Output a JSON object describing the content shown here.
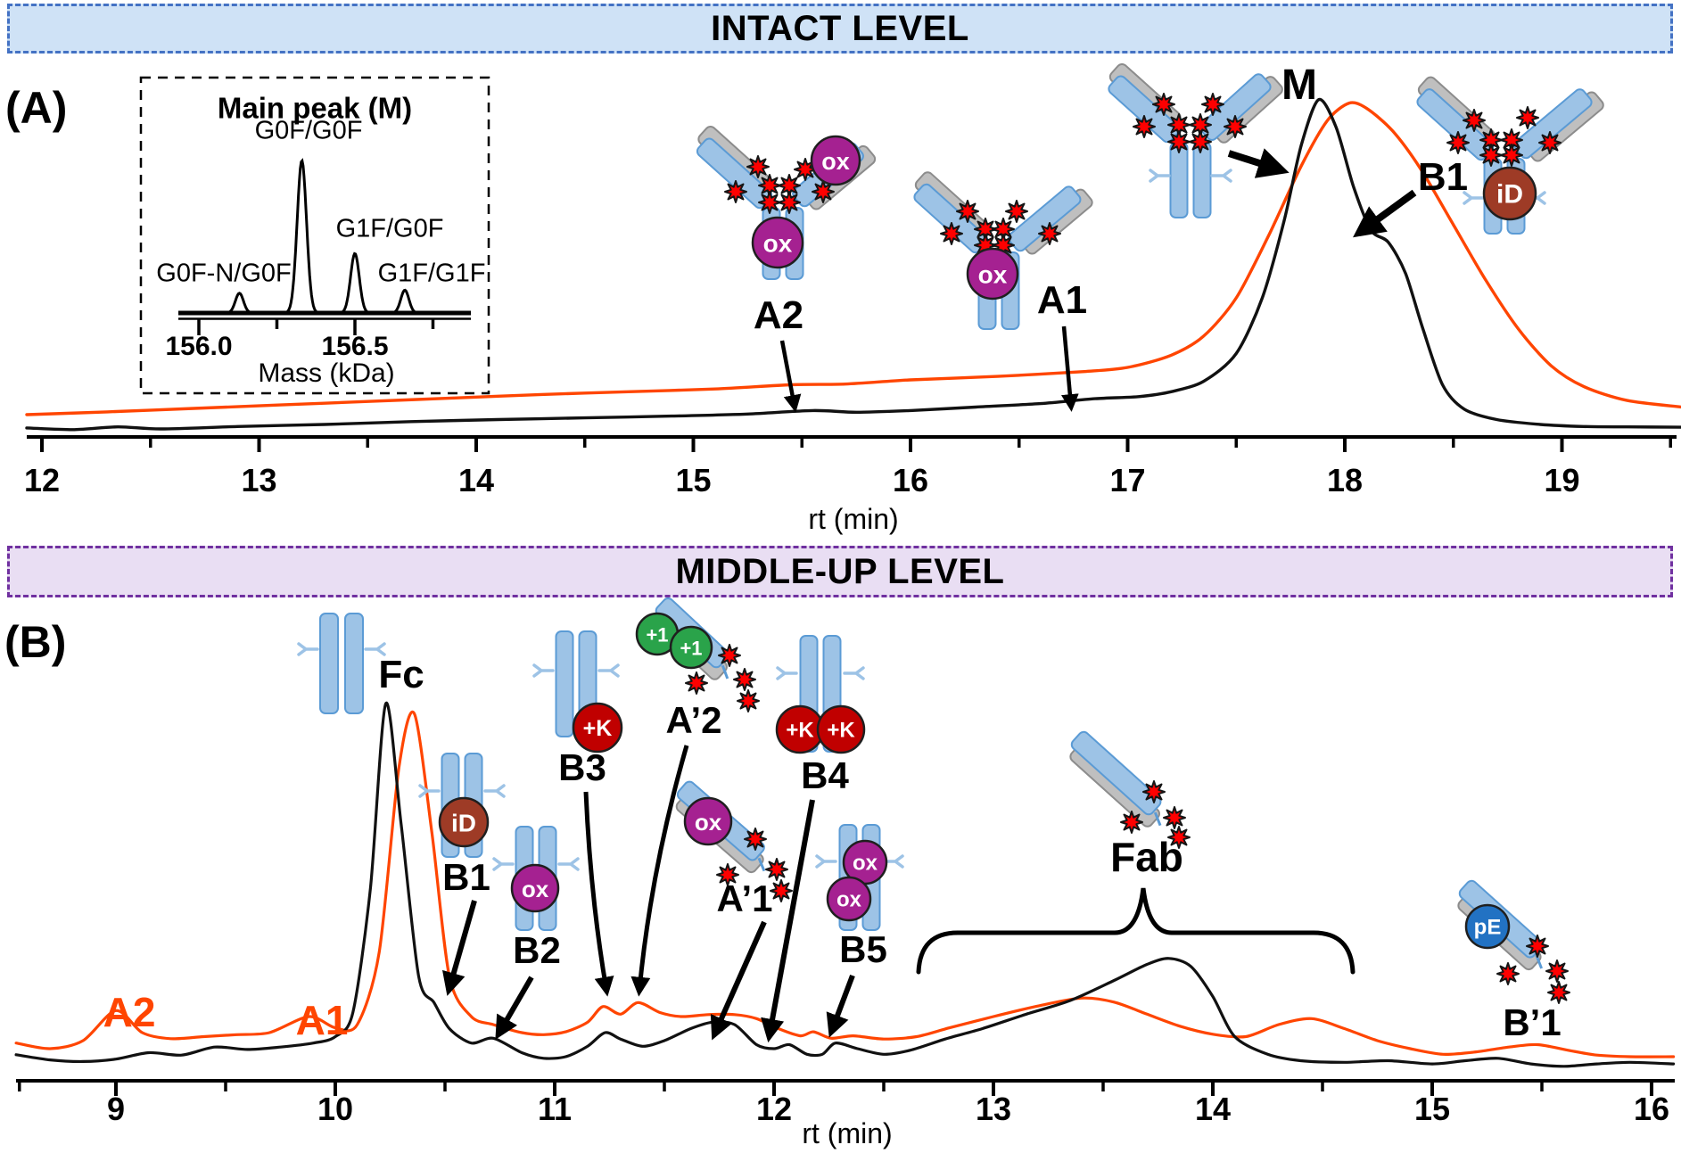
{
  "banners": {
    "intact": "INTACT LEVEL",
    "middle_up": "MIDDLE-UP LEVEL"
  },
  "panelA": {
    "label": "(A)",
    "xlabel": "rt (min)",
    "xticks": [
      "12",
      "13",
      "14",
      "15",
      "16",
      "17",
      "18",
      "19"
    ],
    "peak_labels": {
      "M": "M",
      "B1": "B1",
      "A1": "A1",
      "A2": "A2"
    },
    "inset": {
      "title": "Main peak (M)",
      "xlabel": "Mass (kDa)",
      "tick_labels": [
        "156.0",
        "156.5"
      ],
      "peak_labels": [
        "G0F-N/G0F",
        "G0F/G0F",
        "G1F/G0F",
        "G1F/G1F"
      ]
    }
  },
  "panelB": {
    "label": "(B)",
    "xlabel": "rt (min)",
    "xticks": [
      "9",
      "10",
      "11",
      "12",
      "13",
      "14",
      "15",
      "16"
    ],
    "peak_labels": {
      "A2": "A2",
      "A1": "A1",
      "Fc": "Fc",
      "B1": "B1",
      "B2": "B2",
      "B3": "B3",
      "Ap2": "A’2",
      "Ap1": "A’1",
      "B4": "B4",
      "B5": "B5",
      "Fab": "Fab",
      "Bp1": "B’1"
    }
  },
  "glyphs": {
    "ox": "ox",
    "id": "iD",
    "plusK": "+K",
    "plus1": "+1",
    "pE": "pE"
  },
  "colors": {
    "orange_trace": "#ff4500",
    "black_trace": "#111111",
    "banner_intact_bg": "#cfe2f6",
    "banner_intact_border": "#4472c4",
    "banner_middleup_bg": "#e9def3",
    "banner_middleup_border": "#7030a0",
    "ox_badge": "#a52191",
    "id_badge": "#9e3b26",
    "plusK_badge": "#c00000",
    "plus1_badge": "#2aa34a",
    "pE_badge": "#2272c3",
    "star": "#ff0000",
    "hc_blue": "#9dc3e6",
    "hc_blue_stroke": "#5b9bd5",
    "lc_gray": "#bfbfbf",
    "lc_gray_stroke": "#8c8c8c"
  },
  "chart_data": [
    {
      "id": "panelA",
      "type": "line",
      "title": "Intact level chromatogram",
      "xlabel": "rt (min)",
      "xlim": [
        11.93,
        19.55
      ],
      "x_ticks": [
        12,
        13,
        14,
        15,
        16,
        17,
        18,
        19
      ],
      "grid": false,
      "legend": "none",
      "series": [
        {
          "name": "trace-orange",
          "points": [
            [
              11.93,
              6.4
            ],
            [
              12.3,
              7.2
            ],
            [
              12.7,
              8.2
            ],
            [
              13.1,
              9.2
            ],
            [
              13.5,
              10.2
            ],
            [
              13.9,
              11.2
            ],
            [
              14.3,
              12.2
            ],
            [
              14.7,
              13
            ],
            [
              15.1,
              13.8
            ],
            [
              15.45,
              15
            ],
            [
              15.7,
              15.2
            ],
            [
              16.0,
              16.4
            ],
            [
              16.4,
              17.4
            ],
            [
              16.8,
              18.8
            ],
            [
              17.0,
              20
            ],
            [
              17.2,
              23.5
            ],
            [
              17.35,
              29
            ],
            [
              17.5,
              40
            ],
            [
              17.65,
              58
            ],
            [
              17.8,
              78
            ],
            [
              17.92,
              91
            ],
            [
              18.02,
              96
            ],
            [
              18.1,
              94.5
            ],
            [
              18.22,
              88
            ],
            [
              18.35,
              77
            ],
            [
              18.5,
              61
            ],
            [
              18.65,
              45
            ],
            [
              18.8,
              31
            ],
            [
              18.95,
              20.5
            ],
            [
              19.1,
              14.5
            ],
            [
              19.3,
              10.5
            ],
            [
              19.55,
              8.6
            ]
          ]
        },
        {
          "name": "trace-black",
          "points": [
            [
              11.93,
              2.6
            ],
            [
              12.15,
              2.1
            ],
            [
              12.35,
              2.9
            ],
            [
              12.55,
              2.3
            ],
            [
              12.9,
              3
            ],
            [
              13.3,
              3.6
            ],
            [
              13.7,
              4.4
            ],
            [
              14.1,
              5
            ],
            [
              14.5,
              5.5
            ],
            [
              14.9,
              6
            ],
            [
              15.25,
              6.6
            ],
            [
              15.55,
              7.6
            ],
            [
              15.75,
              7.1
            ],
            [
              16.0,
              7.6
            ],
            [
              16.3,
              8.6
            ],
            [
              16.6,
              9.6
            ],
            [
              16.85,
              11
            ],
            [
              17.05,
              11.6
            ],
            [
              17.2,
              13
            ],
            [
              17.35,
              16
            ],
            [
              17.5,
              24
            ],
            [
              17.62,
              40
            ],
            [
              17.72,
              62
            ],
            [
              17.8,
              84
            ],
            [
              17.88,
              97
            ],
            [
              17.96,
              89
            ],
            [
              18.04,
              72
            ],
            [
              18.12,
              59.5
            ],
            [
              18.2,
              56
            ],
            [
              18.28,
              47
            ],
            [
              18.36,
              31
            ],
            [
              18.45,
              15
            ],
            [
              18.55,
              8
            ],
            [
              18.7,
              5
            ],
            [
              18.9,
              3.6
            ],
            [
              19.1,
              3
            ],
            [
              19.3,
              2.9
            ],
            [
              19.55,
              2.8
            ]
          ]
        }
      ],
      "annotations": [
        {
          "label": "A2",
          "rt": 15.55
        },
        {
          "label": "A1",
          "rt": 16.85
        },
        {
          "label": "M",
          "rt": 17.9
        },
        {
          "label": "B1",
          "rt": 18.2
        }
      ]
    },
    {
      "id": "insetA",
      "type": "line",
      "title": "Main peak (M)",
      "xlabel": "Mass (kDa)",
      "xlim": [
        155.93,
        156.84
      ],
      "x_ticks": [
        156.0,
        156.5
      ],
      "peaks": [
        {
          "label": "G0F-N/G0F",
          "mass": 156.13,
          "rel_intensity": 13,
          "sigma": 0.013
        },
        {
          "label": "G0F/G0F",
          "mass": 156.33,
          "rel_intensity": 100,
          "sigma": 0.015
        },
        {
          "label": "G1F/G0F",
          "mass": 156.5,
          "rel_intensity": 39,
          "sigma": 0.014
        },
        {
          "label": "G1F/G1F",
          "mass": 156.66,
          "rel_intensity": 15,
          "sigma": 0.013
        }
      ]
    },
    {
      "id": "panelB",
      "type": "line",
      "title": "Middle-up level chromatogram",
      "xlabel": "rt (min)",
      "xlim": [
        8.545,
        16.1
      ],
      "x_ticks": [
        9,
        10,
        11,
        12,
        13,
        14,
        15,
        16
      ],
      "grid": false,
      "legend": "none",
      "series": [
        {
          "name": "trace-orange",
          "points": [
            [
              8.545,
              9.4
            ],
            [
              8.7,
              8
            ],
            [
              8.85,
              10
            ],
            [
              9.0,
              17.5
            ],
            [
              9.12,
              12
            ],
            [
              9.25,
              10.5
            ],
            [
              9.4,
              11
            ],
            [
              9.55,
              11.5
            ],
            [
              9.7,
              12
            ],
            [
              9.88,
              16
            ],
            [
              10.0,
              13.2
            ],
            [
              10.1,
              14
            ],
            [
              10.2,
              32
            ],
            [
              10.29,
              78
            ],
            [
              10.36,
              91.5
            ],
            [
              10.44,
              62
            ],
            [
              10.52,
              26
            ],
            [
              10.62,
              16
            ],
            [
              10.72,
              14
            ],
            [
              10.85,
              12
            ],
            [
              10.95,
              11.5
            ],
            [
              11.05,
              12.2
            ],
            [
              11.15,
              14.6
            ],
            [
              11.22,
              18.5
            ],
            [
              11.3,
              16.6
            ],
            [
              11.38,
              19.5
            ],
            [
              11.48,
              17
            ],
            [
              11.58,
              16
            ],
            [
              11.7,
              16.5
            ],
            [
              11.82,
              16.5
            ],
            [
              11.92,
              15.5
            ],
            [
              12.02,
              13
            ],
            [
              12.12,
              11.2
            ],
            [
              12.18,
              12.2
            ],
            [
              12.26,
              10.6
            ],
            [
              12.36,
              11.2
            ],
            [
              12.5,
              10.4
            ],
            [
              12.65,
              11
            ],
            [
              12.8,
              13.2
            ],
            [
              13.0,
              16
            ],
            [
              13.2,
              18.6
            ],
            [
              13.4,
              20.6
            ],
            [
              13.55,
              19.6
            ],
            [
              13.7,
              16.6
            ],
            [
              13.85,
              13.6
            ],
            [
              14.0,
              11.6
            ],
            [
              14.15,
              11
            ],
            [
              14.3,
              14
            ],
            [
              14.45,
              15.5
            ],
            [
              14.6,
              13
            ],
            [
              14.75,
              10
            ],
            [
              14.9,
              8
            ],
            [
              15.05,
              6.6
            ],
            [
              15.2,
              7.2
            ],
            [
              15.35,
              8.4
            ],
            [
              15.48,
              9
            ],
            [
              15.62,
              7.6
            ],
            [
              15.75,
              6.4
            ],
            [
              15.9,
              6
            ],
            [
              16.1,
              6
            ]
          ]
        },
        {
          "name": "trace-black",
          "points": [
            [
              8.545,
              6.5
            ],
            [
              8.7,
              5.2
            ],
            [
              8.85,
              4.8
            ],
            [
              9.0,
              5.4
            ],
            [
              9.15,
              7
            ],
            [
              9.3,
              6.4
            ],
            [
              9.45,
              8.4
            ],
            [
              9.6,
              7.8
            ],
            [
              9.75,
              8.4
            ],
            [
              9.9,
              9.4
            ],
            [
              10.0,
              11
            ],
            [
              10.08,
              17
            ],
            [
              10.16,
              48
            ],
            [
              10.23,
              94
            ],
            [
              10.3,
              64
            ],
            [
              10.38,
              26
            ],
            [
              10.45,
              19.5
            ],
            [
              10.52,
              13
            ],
            [
              10.62,
              9.4
            ],
            [
              10.72,
              10.6
            ],
            [
              10.85,
              7
            ],
            [
              10.95,
              5.6
            ],
            [
              11.05,
              6
            ],
            [
              11.15,
              8.6
            ],
            [
              11.23,
              12
            ],
            [
              11.3,
              10.4
            ],
            [
              11.4,
              8.6
            ],
            [
              11.5,
              10
            ],
            [
              11.62,
              13
            ],
            [
              11.72,
              14.6
            ],
            [
              11.82,
              14
            ],
            [
              11.92,
              9
            ],
            [
              12.0,
              8
            ],
            [
              12.07,
              9
            ],
            [
              12.15,
              6.6
            ],
            [
              12.22,
              6.6
            ],
            [
              12.28,
              9.4
            ],
            [
              12.38,
              8
            ],
            [
              12.5,
              6.6
            ],
            [
              12.62,
              7.6
            ],
            [
              12.78,
              10.4
            ],
            [
              12.95,
              13
            ],
            [
              13.15,
              16.6
            ],
            [
              13.35,
              20
            ],
            [
              13.55,
              25
            ],
            [
              13.7,
              29
            ],
            [
              13.8,
              30.5
            ],
            [
              13.9,
              28.5
            ],
            [
              14.0,
              21
            ],
            [
              14.1,
              11
            ],
            [
              14.25,
              6.6
            ],
            [
              14.4,
              5
            ],
            [
              14.6,
              4.6
            ],
            [
              14.8,
              5
            ],
            [
              15.0,
              4.2
            ],
            [
              15.15,
              5
            ],
            [
              15.3,
              5.6
            ],
            [
              15.45,
              4.2
            ],
            [
              15.6,
              3.6
            ],
            [
              15.75,
              4.2
            ],
            [
              15.9,
              4.6
            ],
            [
              16.1,
              4.2
            ]
          ]
        }
      ],
      "annotations": [
        {
          "label": "A2",
          "rt": 9.0
        },
        {
          "label": "A1",
          "rt": 9.9
        },
        {
          "label": "Fc",
          "rt": 10.25
        },
        {
          "label": "B1",
          "rt": 10.5
        },
        {
          "label": "B2",
          "rt": 10.73
        },
        {
          "label": "B3",
          "rt": 11.23
        },
        {
          "label": "A’2",
          "rt": 11.38
        },
        {
          "label": "A’1",
          "rt": 11.72
        },
        {
          "label": "B4",
          "rt": 11.97
        },
        {
          "label": "B5",
          "rt": 12.27
        },
        {
          "label": "Fab",
          "rt_range": [
            12.7,
            14.7
          ]
        },
        {
          "label": "B’1",
          "rt": 15.45
        }
      ]
    }
  ]
}
